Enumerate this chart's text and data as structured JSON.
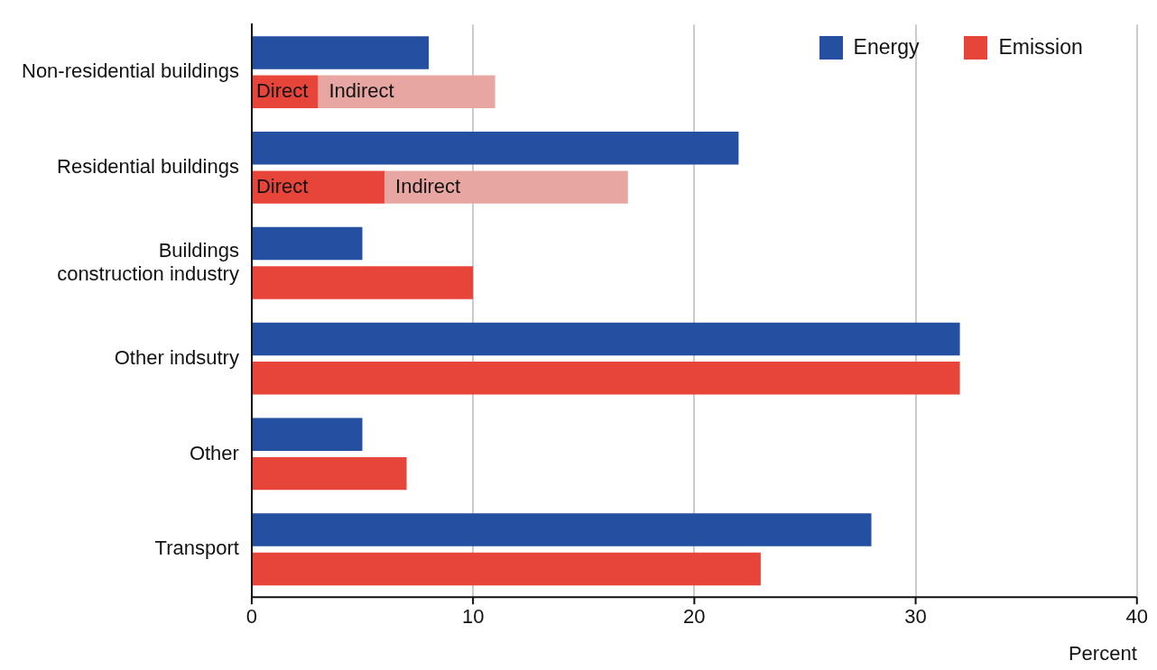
{
  "chart_data": {
    "type": "bar",
    "orientation": "horizontal",
    "xlabel": "Percent",
    "categories": [
      "Non-residential buildings",
      "Residential buildings",
      "Buildings\nconstruction industry",
      "Other indsutry",
      "Other",
      "Transport"
    ],
    "series": [
      {
        "name": "Energy",
        "color": "#254fa0",
        "values": [
          8,
          22,
          5,
          32,
          5,
          28
        ]
      },
      {
        "name": "Emission",
        "color": "#e8453a",
        "values": [
          3,
          6,
          10,
          32,
          7,
          23
        ],
        "value_labels": [
          "Direct",
          "Direct",
          null,
          null,
          null,
          null
        ]
      },
      {
        "color": "#e8a6a2",
        "values": [
          8,
          11,
          null,
          null,
          null,
          null
        ],
        "base": [
          3,
          6,
          null,
          null,
          null,
          null
        ],
        "value_labels": [
          "Indirect",
          "Indirect",
          null,
          null,
          null,
          null
        ]
      }
    ],
    "xlim": [
      0,
      40
    ],
    "xticks": [
      0,
      10,
      20,
      30,
      40
    ],
    "grid": "x",
    "legend": "top right"
  }
}
